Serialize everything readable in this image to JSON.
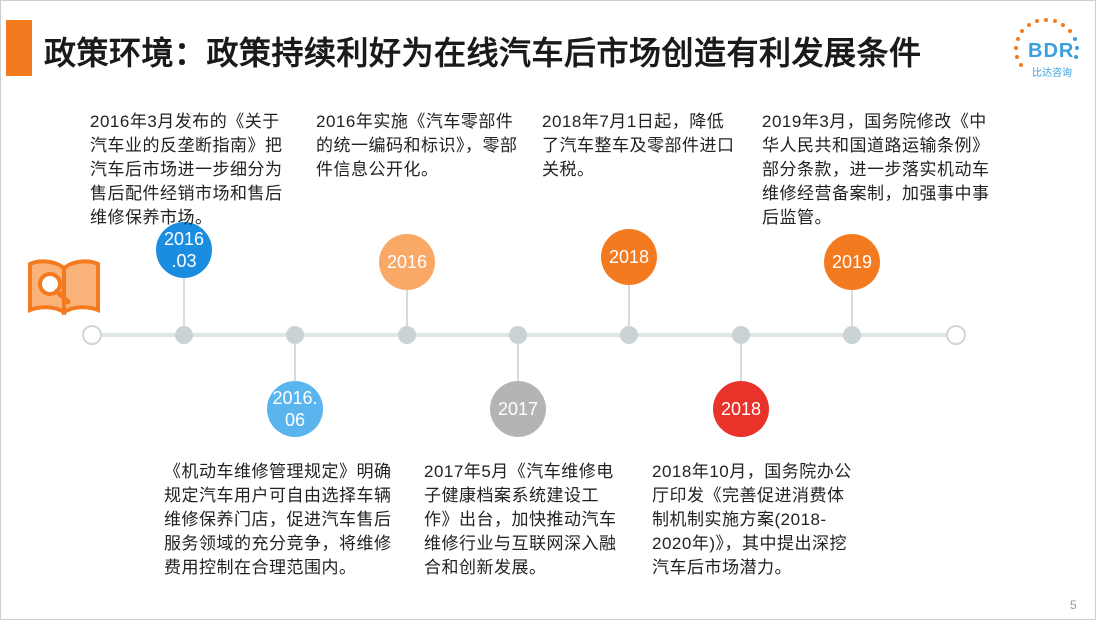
{
  "title": "政策环境：政策持续利好为在线汽车后市场创造有利发展条件",
  "logo": {
    "text": "BDR",
    "subtitle": "比达咨询"
  },
  "colors": {
    "accent": "#f47a20",
    "blue": "#1a8de1",
    "light_blue": "#5ab5ee",
    "light_orange": "#f9a865",
    "orange": "#f47a20",
    "gray": "#b4b4b4",
    "red": "#e8322a"
  },
  "events": [
    {
      "year": "2016\n.03",
      "text": "2016年3月发布的《关于汽车业的反垄断指南》把汽车后市场进一步细分为售后配件经销市场和售后维修保养市场。"
    },
    {
      "year": "2016.\n06",
      "text": "《机动车维修管理规定》明确规定汽车用户可自由选择车辆维修保养门店，促进汽车售后服务领域的充分竞争，将维修费用控制在合理范围内。"
    },
    {
      "year": "2016",
      "text": "2016年实施《汽车零部件的统一编码和标识》，零部件信息公开化。"
    },
    {
      "year": "2017",
      "text": "2017年5月《汽车维修电子健康档案系统建设工作》出台，加快推动汽车维修行业与互联网深入融合和创新发展。"
    },
    {
      "year": "2018",
      "text": "2018年7月1日起，降低了汽车整车及零部件进口关税。"
    },
    {
      "year": "2018",
      "text": "2018年10月，国务院办公厅印发《完善促进消费体制机制实施方案(2018-2020年)》，其中提出深挖汽车后市场潜力。"
    },
    {
      "year": "2019",
      "text": "2019年3月，国务院修改《中华人民共和国道路运输条例》部分条款，进一步落实机动车维修经营备案制，加强事中事后监管。"
    }
  ],
  "page_number": "5"
}
